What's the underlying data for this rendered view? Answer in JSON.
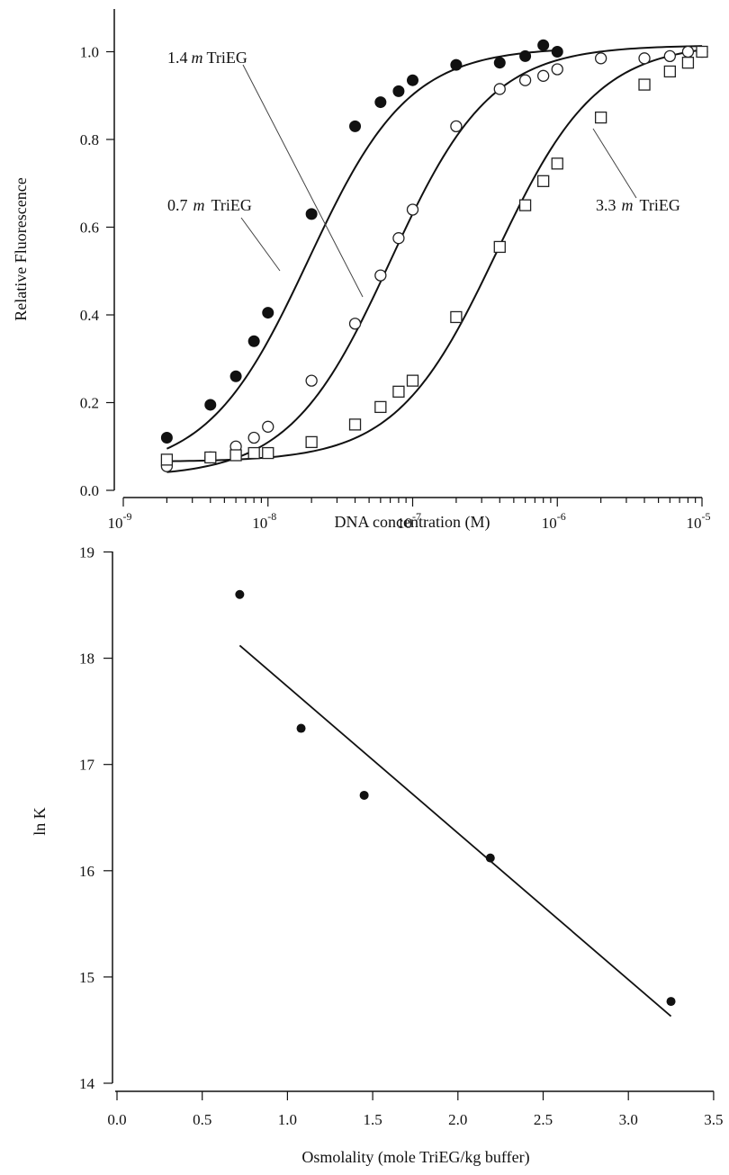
{
  "chart_data": [
    {
      "type": "scatter",
      "xlabel": "DNA concentration (M)",
      "ylabel": "Relative Fluorescence",
      "x_scale": "log",
      "xlim": [
        1e-09,
        1e-05
      ],
      "ylim": [
        0.0,
        1.05
      ],
      "x_ticks": [
        {
          "base": "10",
          "exp": "-9"
        },
        {
          "base": "10",
          "exp": "-8"
        },
        {
          "base": "10",
          "exp": "-7"
        },
        {
          "base": "10",
          "exp": "-6"
        },
        {
          "base": "10",
          "exp": "-5"
        }
      ],
      "y_ticks": [
        "0.0",
        "0.2",
        "0.4",
        "0.6",
        "0.8",
        "1.0"
      ],
      "grid": false,
      "series": [
        {
          "name": "1.4 m TriEG",
          "label_num": "1.4",
          "label_unit": "m",
          "label_rest": "TriEG",
          "marker": "filled-circle",
          "fit_mid": 1.9e-08,
          "fit_min": 0.04,
          "fit_max": 1.01,
          "x": [
            2e-09,
            4e-09,
            6e-09,
            8e-09,
            1e-08,
            2e-08,
            4e-08,
            6e-08,
            8e-08,
            1e-07,
            2e-07,
            4e-07,
            6e-07,
            8e-07,
            1e-06
          ],
          "y": [
            0.12,
            0.195,
            0.26,
            0.34,
            0.405,
            0.63,
            0.83,
            0.885,
            0.91,
            0.935,
            0.97,
            0.975,
            0.99,
            1.015,
            1.0
          ]
        },
        {
          "name": "0.7 m TriEG",
          "label_num": "0.7",
          "label_unit": "m",
          "label_rest": "TriEG",
          "marker": "open-circle",
          "fit_mid": 7e-08,
          "fit_min": 0.03,
          "fit_max": 1.015,
          "x": [
            2e-09,
            4e-09,
            6e-09,
            8e-09,
            1e-08,
            2e-08,
            4e-08,
            6e-08,
            8e-08,
            1e-07,
            2e-07,
            4e-07,
            6e-07,
            8e-07,
            1e-06,
            2e-06,
            4e-06,
            6e-06,
            8e-06,
            1e-05
          ],
          "y": [
            0.055,
            0.075,
            0.1,
            0.12,
            0.145,
            0.25,
            0.38,
            0.49,
            0.575,
            0.64,
            0.83,
            0.915,
            0.935,
            0.945,
            0.96,
            0.985,
            0.985,
            0.99,
            1.0,
            1.0
          ]
        },
        {
          "name": "3.3 m TriEG",
          "label_num": "3.3",
          "label_unit": "m",
          "label_rest": "TriEG",
          "marker": "open-square",
          "fit_mid": 3.8e-07,
          "fit_min": 0.065,
          "fit_max": 1.02,
          "x": [
            2e-09,
            4e-09,
            6e-09,
            8e-09,
            1e-08,
            2e-08,
            4e-08,
            6e-08,
            8e-08,
            1e-07,
            2e-07,
            4e-07,
            6e-07,
            8e-07,
            1e-06,
            2e-06,
            4e-06,
            6e-06,
            8e-06,
            1e-05
          ],
          "y": [
            0.07,
            0.075,
            0.08,
            0.085,
            0.085,
            0.11,
            0.15,
            0.19,
            0.225,
            0.25,
            0.395,
            0.555,
            0.65,
            0.705,
            0.745,
            0.85,
            0.925,
            0.955,
            0.975,
            1.0
          ]
        }
      ]
    },
    {
      "type": "scatter",
      "xlabel": "Osmolality (mole TriEG/kg buffer)",
      "ylabel": "ln K",
      "xlim": [
        -0.03,
        3.5
      ],
      "ylim": [
        14,
        19
      ],
      "x_ticks": [
        "0.0",
        "0.5",
        "1.0",
        "1.5",
        "2.0",
        "2.5",
        "3.0",
        "3.5"
      ],
      "y_ticks": [
        "14",
        "15",
        "16",
        "17",
        "18",
        "19"
      ],
      "grid": false,
      "points": {
        "x": [
          0.72,
          1.08,
          1.45,
          2.19,
          3.25
        ],
        "y": [
          18.6,
          17.34,
          16.71,
          16.12,
          14.77
        ]
      },
      "fit_line": {
        "x": [
          0.72,
          3.25
        ],
        "y": [
          18.12,
          14.63
        ]
      }
    }
  ]
}
